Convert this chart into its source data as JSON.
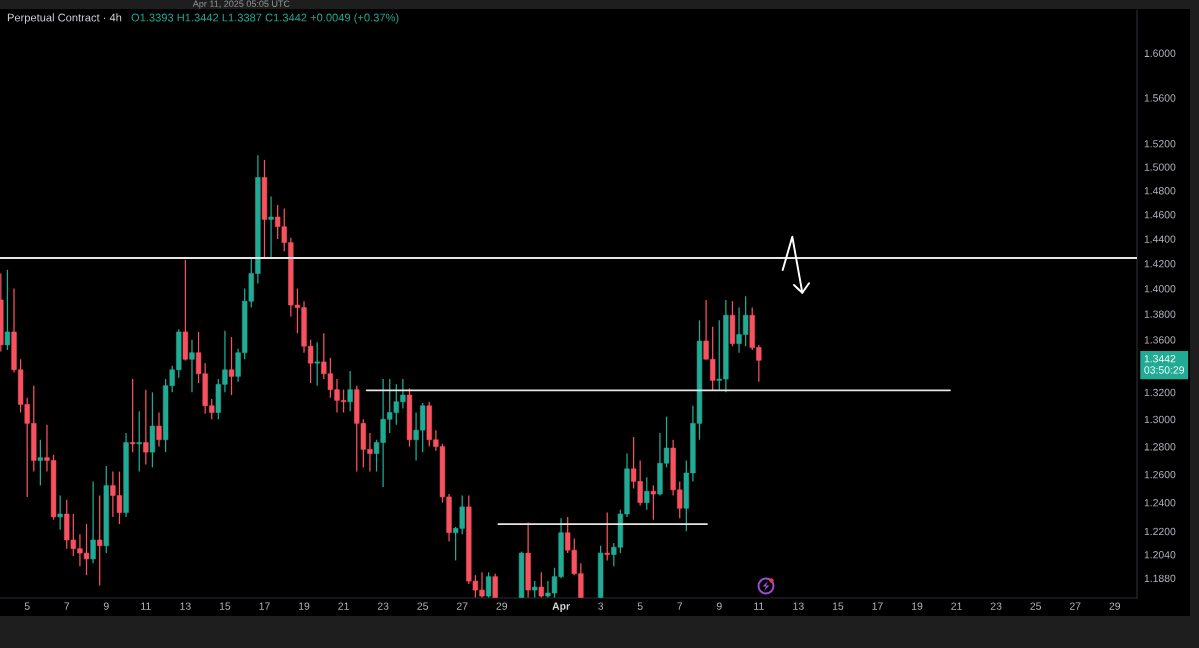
{
  "chart_data": {
    "type": "candlestick",
    "title": "Perpetual Contract · 4h",
    "subtitle": "O1.3393 H1.3442 L1.3387 C1.3442 +0.0049 (+0.37%)",
    "annotations": [
      "1.3442\n03:50:29",
      "Apr 11, 2025 05:05 UTC"
    ],
    "log": true,
    "xlim": [
      "2025-03-03T15:00",
      "2025-04-30T03:00"
    ],
    "xticks": [
      {
        "value": "2025-03-05",
        "label": "5"
      },
      {
        "value": "2025-03-07",
        "label": "7"
      },
      {
        "value": "2025-03-09",
        "label": "9"
      },
      {
        "value": "2025-03-11",
        "label": "11"
      },
      {
        "value": "2025-03-13",
        "label": "13"
      },
      {
        "value": "2025-03-15",
        "label": "15"
      },
      {
        "value": "2025-03-17",
        "label": "17"
      },
      {
        "value": "2025-03-19",
        "label": "19"
      },
      {
        "value": "2025-03-21",
        "label": "21"
      },
      {
        "value": "2025-03-23",
        "label": "23"
      },
      {
        "value": "2025-03-25",
        "label": "25"
      },
      {
        "value": "2025-03-27",
        "label": "27"
      },
      {
        "value": "2025-03-29",
        "label": "29"
      },
      {
        "value": "2025-04-01",
        "label": "Apr"
      },
      {
        "value": "2025-04-03",
        "label": "3"
      },
      {
        "value": "2025-04-05",
        "label": "5"
      },
      {
        "value": "2025-04-07",
        "label": "7"
      },
      {
        "value": "2025-04-09",
        "label": "9"
      },
      {
        "value": "2025-04-11",
        "label": "11"
      },
      {
        "value": "2025-04-13",
        "label": "13"
      },
      {
        "value": "2025-04-15",
        "label": "15"
      },
      {
        "value": "2025-04-17",
        "label": "17"
      },
      {
        "value": "2025-04-19",
        "label": "19"
      },
      {
        "value": "2025-04-21",
        "label": "21"
      },
      {
        "value": "2025-04-23",
        "label": "23"
      },
      {
        "value": "2025-04-25",
        "label": "25"
      },
      {
        "value": "2025-04-27",
        "label": "27"
      },
      {
        "value": "2025-04-29",
        "label": "29"
      }
    ],
    "ylim": [
      1.1747,
      1.6396
    ],
    "yticks": [
      {
        "value": 1.6,
        "label": "1.6000"
      },
      {
        "value": 1.56,
        "label": "1.5600"
      },
      {
        "value": 1.52,
        "label": "1.5200"
      },
      {
        "value": 1.5,
        "label": "1.5000"
      },
      {
        "value": 1.48,
        "label": "1.4800"
      },
      {
        "value": 1.46,
        "label": "1.4600"
      },
      {
        "value": 1.44,
        "label": "1.4400"
      },
      {
        "value": 1.42,
        "label": "1.4200"
      },
      {
        "value": 1.4,
        "label": "1.4000"
      },
      {
        "value": 1.38,
        "label": "1.3800"
      },
      {
        "value": 1.36,
        "label": "1.3600"
      },
      {
        "value": 1.32,
        "label": "1.3200"
      },
      {
        "value": 1.3,
        "label": "1.3000"
      },
      {
        "value": 1.28,
        "label": "1.2800"
      },
      {
        "value": 1.26,
        "label": "1.2600"
      },
      {
        "value": 1.24,
        "label": "1.2400"
      },
      {
        "value": 1.22,
        "label": "1.2200"
      },
      {
        "value": 1.204,
        "label": "1.2040"
      },
      {
        "value": 1.188,
        "label": "1.1880"
      }
    ],
    "ref_lines": [
      {
        "axis": "y",
        "value": 1.4245,
        "color": "#e6e6e6"
      }
    ],
    "x": [
      "2025-03-03T16:00",
      "2025-03-04T00:00",
      "2025-03-04T08:00",
      "2025-03-04T16:00",
      "2025-03-05T00:00",
      "2025-03-05T08:00",
      "2025-03-05T16:00",
      "2025-03-06T00:00",
      "2025-03-06T08:00",
      "2025-03-06T16:00",
      "2025-03-07T00:00",
      "2025-03-07T08:00",
      "2025-03-07T16:00",
      "2025-03-08T00:00",
      "2025-03-08T08:00",
      "2025-03-08T16:00",
      "2025-03-09T00:00",
      "2025-03-09T08:00",
      "2025-03-09T16:00",
      "2025-03-10T00:00",
      "2025-03-10T08:00",
      "2025-03-10T16:00",
      "2025-03-11T00:00",
      "2025-03-11T08:00",
      "2025-03-11T16:00",
      "2025-03-12T00:00",
      "2025-03-12T08:00",
      "2025-03-12T16:00",
      "2025-03-13T00:00",
      "2025-03-13T08:00",
      "2025-03-13T16:00",
      "2025-03-14T00:00",
      "2025-03-14T08:00",
      "2025-03-14T16:00",
      "2025-03-15T00:00",
      "2025-03-15T08:00",
      "2025-03-15T16:00",
      "2025-03-16T00:00",
      "2025-03-16T08:00",
      "2025-03-16T16:00",
      "2025-03-17T00:00",
      "2025-03-17T08:00",
      "2025-03-17T16:00",
      "2025-03-18T00:00",
      "2025-03-18T08:00",
      "2025-03-18T16:00",
      "2025-03-19T00:00",
      "2025-03-19T08:00",
      "2025-03-19T16:00",
      "2025-03-20T00:00",
      "2025-03-20T08:00",
      "2025-03-20T16:00",
      "2025-03-21T00:00",
      "2025-03-21T08:00",
      "2025-03-21T16:00",
      "2025-03-22T00:00",
      "2025-03-22T08:00",
      "2025-03-22T16:00",
      "2025-03-23T00:00",
      "2025-03-23T08:00",
      "2025-03-23T16:00",
      "2025-03-24T00:00",
      "2025-03-24T08:00",
      "2025-03-24T16:00",
      "2025-03-25T00:00",
      "2025-03-25T08:00",
      "2025-03-25T16:00",
      "2025-03-26T00:00",
      "2025-03-26T08:00",
      "2025-03-26T16:00",
      "2025-03-27T00:00",
      "2025-03-27T08:00",
      "2025-03-27T16:00",
      "2025-03-28T00:00",
      "2025-03-28T08:00",
      "2025-03-28T16:00",
      "2025-03-30T00:00",
      "2025-03-30T08:00",
      "2025-03-30T16:00",
      "2025-03-31T00:00",
      "2025-03-31T08:00",
      "2025-03-31T16:00",
      "2025-04-01T00:00",
      "2025-04-01T08:00",
      "2025-04-01T16:00",
      "2025-04-02T00:00",
      "2025-04-03T00:00",
      "2025-04-03T08:00",
      "2025-04-03T16:00",
      "2025-04-04T00:00",
      "2025-04-04T08:00",
      "2025-04-04T16:00",
      "2025-04-05T00:00",
      "2025-04-05T08:00",
      "2025-04-05T16:00",
      "2025-04-06T00:00",
      "2025-04-06T08:00",
      "2025-04-06T16:00",
      "2025-04-07T00:00",
      "2025-04-07T08:00",
      "2025-04-07T16:00",
      "2025-04-08T00:00",
      "2025-04-08T08:00",
      "2025-04-08T16:00",
      "2025-04-09T00:00",
      "2025-04-09T08:00",
      "2025-04-09T16:00",
      "2025-04-10T00:00",
      "2025-04-10T08:00",
      "2025-04-10T16:00",
      "2025-04-11T00:00"
    ],
    "ohlc": [
      [
        1.391,
        1.412,
        1.351,
        1.356
      ],
      [
        1.356,
        1.415,
        1.352,
        1.366
      ],
      [
        1.366,
        1.4,
        1.335,
        1.337
      ],
      [
        1.337,
        1.345,
        1.305,
        1.311
      ],
      [
        1.311,
        1.316,
        1.244,
        1.297
      ],
      [
        1.297,
        1.325,
        1.262,
        1.27
      ],
      [
        1.27,
        1.285,
        1.252,
        1.272
      ],
      [
        1.272,
        1.296,
        1.262,
        1.27
      ],
      [
        1.27,
        1.274,
        1.228,
        1.23
      ],
      [
        1.23,
        1.245,
        1.221,
        1.232
      ],
      [
        1.232,
        1.242,
        1.208,
        1.214
      ],
      [
        1.214,
        1.232,
        1.203,
        1.208
      ],
      [
        1.208,
        1.218,
        1.196,
        1.205
      ],
      [
        1.205,
        1.225,
        1.19,
        1.201
      ],
      [
        1.201,
        1.255,
        1.198,
        1.214
      ],
      [
        1.214,
        1.245,
        1.183,
        1.21
      ],
      [
        1.21,
        1.266,
        1.205,
        1.252
      ],
      [
        1.252,
        1.262,
        1.23,
        1.245
      ],
      [
        1.245,
        1.262,
        1.225,
        1.233
      ],
      [
        1.233,
        1.29,
        1.23,
        1.283
      ],
      [
        1.283,
        1.33,
        1.276,
        1.282
      ],
      [
        1.282,
        1.306,
        1.262,
        1.283
      ],
      [
        1.283,
        1.322,
        1.267,
        1.276
      ],
      [
        1.276,
        1.32,
        1.265,
        1.295
      ],
      [
        1.295,
        1.305,
        1.28,
        1.285
      ],
      [
        1.285,
        1.33,
        1.276,
        1.325
      ],
      [
        1.325,
        1.34,
        1.32,
        1.337
      ],
      [
        1.337,
        1.368,
        1.331,
        1.366
      ],
      [
        1.366,
        1.423,
        1.344,
        1.345
      ],
      [
        1.345,
        1.36,
        1.32,
        1.35
      ],
      [
        1.35,
        1.366,
        1.327,
        1.334
      ],
      [
        1.334,
        1.342,
        1.304,
        1.31
      ],
      [
        1.31,
        1.315,
        1.3,
        1.305
      ],
      [
        1.305,
        1.33,
        1.3,
        1.326
      ],
      [
        1.326,
        1.367,
        1.32,
        1.337
      ],
      [
        1.337,
        1.362,
        1.318,
        1.332
      ],
      [
        1.332,
        1.353,
        1.328,
        1.35
      ],
      [
        1.35,
        1.4,
        1.345,
        1.39
      ],
      [
        1.39,
        1.425,
        1.385,
        1.412
      ],
      [
        1.412,
        1.51,
        1.404,
        1.491
      ],
      [
        1.491,
        1.506,
        1.425,
        1.456
      ],
      [
        1.456,
        1.475,
        1.425,
        1.458
      ],
      [
        1.458,
        1.468,
        1.44,
        1.45
      ],
      [
        1.45,
        1.465,
        1.43,
        1.437
      ],
      [
        1.437,
        1.441,
        1.378,
        1.387
      ],
      [
        1.387,
        1.4,
        1.365,
        1.385
      ],
      [
        1.385,
        1.39,
        1.35,
        1.355
      ],
      [
        1.355,
        1.36,
        1.327,
        1.342
      ],
      [
        1.342,
        1.358,
        1.325,
        1.343
      ],
      [
        1.343,
        1.365,
        1.33,
        1.334
      ],
      [
        1.334,
        1.346,
        1.316,
        1.322
      ],
      [
        1.322,
        1.33,
        1.305,
        1.314
      ],
      [
        1.314,
        1.322,
        1.305,
        1.313
      ],
      [
        1.313,
        1.336,
        1.306,
        1.322
      ],
      [
        1.322,
        1.325,
        1.262,
        1.297
      ],
      [
        1.297,
        1.3,
        1.265,
        1.278
      ],
      [
        1.278,
        1.29,
        1.262,
        1.275
      ],
      [
        1.275,
        1.285,
        1.262,
        1.283
      ],
      [
        1.283,
        1.33,
        1.251,
        1.3
      ],
      [
        1.3,
        1.33,
        1.29,
        1.305
      ],
      [
        1.305,
        1.326,
        1.296,
        1.313
      ],
      [
        1.313,
        1.33,
        1.308,
        1.318
      ],
      [
        1.318,
        1.323,
        1.28,
        1.285
      ],
      [
        1.285,
        1.305,
        1.27,
        1.292
      ],
      [
        1.292,
        1.312,
        1.276,
        1.31
      ],
      [
        1.31,
        1.313,
        1.28,
        1.285
      ],
      [
        1.285,
        1.292,
        1.277,
        1.28
      ],
      [
        1.28,
        1.282,
        1.24,
        1.244
      ],
      [
        1.244,
        1.246,
        1.213,
        1.219
      ],
      [
        1.219,
        1.223,
        1.2,
        1.222
      ],
      [
        1.222,
        1.245,
        1.218,
        1.237
      ],
      [
        1.237,
        1.245,
        1.184,
        1.186
      ],
      [
        1.186,
        1.19,
        1.175,
        1.18
      ],
      [
        1.18,
        1.192,
        1.175,
        1.176
      ],
      [
        1.176,
        1.192,
        1.175,
        1.189
      ],
      [
        1.189,
        1.191,
        1.175,
        1.175
      ],
      [
        1.175,
        1.206,
        1.175,
        1.205
      ],
      [
        1.205,
        1.226,
        1.175,
        1.18
      ],
      [
        1.18,
        1.186,
        1.175,
        1.182
      ],
      [
        1.182,
        1.192,
        1.175,
        1.176
      ],
      [
        1.176,
        1.186,
        1.175,
        1.178
      ],
      [
        1.178,
        1.195,
        1.175,
        1.189
      ],
      [
        1.189,
        1.229,
        1.188,
        1.219
      ],
      [
        1.219,
        1.23,
        1.205,
        1.207
      ],
      [
        1.207,
        1.215,
        1.19,
        1.191
      ],
      [
        1.191,
        1.198,
        1.175,
        1.175
      ],
      [
        1.175,
        1.21,
        1.175,
        1.205
      ],
      [
        1.205,
        1.233,
        1.2,
        1.204
      ],
      [
        1.204,
        1.212,
        1.196,
        1.209
      ],
      [
        1.209,
        1.235,
        1.205,
        1.232
      ],
      [
        1.232,
        1.275,
        1.23,
        1.264
      ],
      [
        1.264,
        1.287,
        1.25,
        1.255
      ],
      [
        1.255,
        1.27,
        1.238,
        1.24
      ],
      [
        1.24,
        1.258,
        1.235,
        1.248
      ],
      [
        1.248,
        1.252,
        1.228,
        1.246
      ],
      [
        1.246,
        1.29,
        1.245,
        1.268
      ],
      [
        1.268,
        1.302,
        1.265,
        1.279
      ],
      [
        1.279,
        1.285,
        1.245,
        1.249
      ],
      [
        1.249,
        1.255,
        1.229,
        1.236
      ],
      [
        1.236,
        1.27,
        1.22,
        1.261
      ],
      [
        1.261,
        1.31,
        1.255,
        1.297
      ],
      [
        1.297,
        1.375,
        1.285,
        1.359
      ],
      [
        1.359,
        1.391,
        1.345,
        1.345
      ],
      [
        1.345,
        1.37,
        1.321,
        1.329
      ],
      [
        1.329,
        1.375,
        1.322,
        1.33
      ],
      [
        1.33,
        1.391,
        1.32,
        1.379
      ],
      [
        1.379,
        1.39,
        1.355,
        1.357
      ],
      [
        1.357,
        1.385,
        1.35,
        1.364
      ],
      [
        1.364,
        1.394,
        1.355,
        1.379
      ],
      [
        1.379,
        1.385,
        1.352,
        1.354
      ],
      [
        1.354,
        1.356,
        1.328,
        1.3442
      ]
    ],
    "colors": [
      "#f7525f",
      "#22ab94",
      "#f7525f",
      "#f7525f",
      "#f7525f",
      "#f7525f",
      "#22ab94",
      "#f7525f",
      "#f7525f",
      "#22ab94",
      "#f7525f",
      "#f7525f",
      "#f7525f",
      "#f7525f",
      "#22ab94",
      "#f7525f",
      "#22ab94",
      "#f7525f",
      "#f7525f",
      "#22ab94",
      "#f7525f",
      "#22ab94",
      "#f7525f",
      "#22ab94",
      "#f7525f",
      "#22ab94",
      "#22ab94",
      "#22ab94",
      "#f7525f",
      "#22ab94",
      "#f7525f",
      "#f7525f",
      "#f7525f",
      "#22ab94",
      "#22ab94",
      "#f7525f",
      "#22ab94",
      "#22ab94",
      "#22ab94",
      "#22ab94",
      "#f7525f",
      "#22ab94",
      "#f7525f",
      "#f7525f",
      "#f7525f",
      "#f7525f",
      "#f7525f",
      "#f7525f",
      "#22ab94",
      "#f7525f",
      "#f7525f",
      "#f7525f",
      "#f7525f",
      "#22ab94",
      "#f7525f",
      "#f7525f",
      "#f7525f",
      "#22ab94",
      "#22ab94",
      "#22ab94",
      "#22ab94",
      "#22ab94",
      "#f7525f",
      "#22ab94",
      "#22ab94",
      "#f7525f",
      "#f7525f",
      "#f7525f",
      "#f7525f",
      "#22ab94",
      "#22ab94",
      "#f7525f",
      "#f7525f",
      "#f7525f",
      "#22ab94",
      "#f7525f",
      "#22ab94",
      "#f7525f",
      "#22ab94",
      "#f7525f",
      "#22ab94",
      "#22ab94",
      "#22ab94",
      "#f7525f",
      "#f7525f",
      "#f7525f",
      "#22ab94",
      "#f7525f",
      "#22ab94",
      "#22ab94",
      "#22ab94",
      "#f7525f",
      "#f7525f",
      "#22ab94",
      "#f7525f",
      "#22ab94",
      "#22ab94",
      "#f7525f",
      "#f7525f",
      "#22ab94",
      "#22ab94",
      "#22ab94",
      "#f7525f",
      "#f7525f",
      "#22ab94",
      "#22ab94",
      "#f7525f",
      "#22ab94",
      "#22ab94",
      "#f7525f",
      "#f7525f"
    ],
    "series": [
      {
        "type": "line",
        "x": [
          "2025-03-22T04:00",
          "2025-04-20T16:00"
        ],
        "values": [
          1.3215,
          1.3215
        ],
        "color": "#e6e6e6"
      },
      {
        "type": "line",
        "x": [
          "2025-03-28T20:00",
          "2025-04-08T09:00"
        ],
        "values": [
          1.2249,
          1.2249
        ],
        "color": "#e6e6e6"
      }
    ]
  }
}
